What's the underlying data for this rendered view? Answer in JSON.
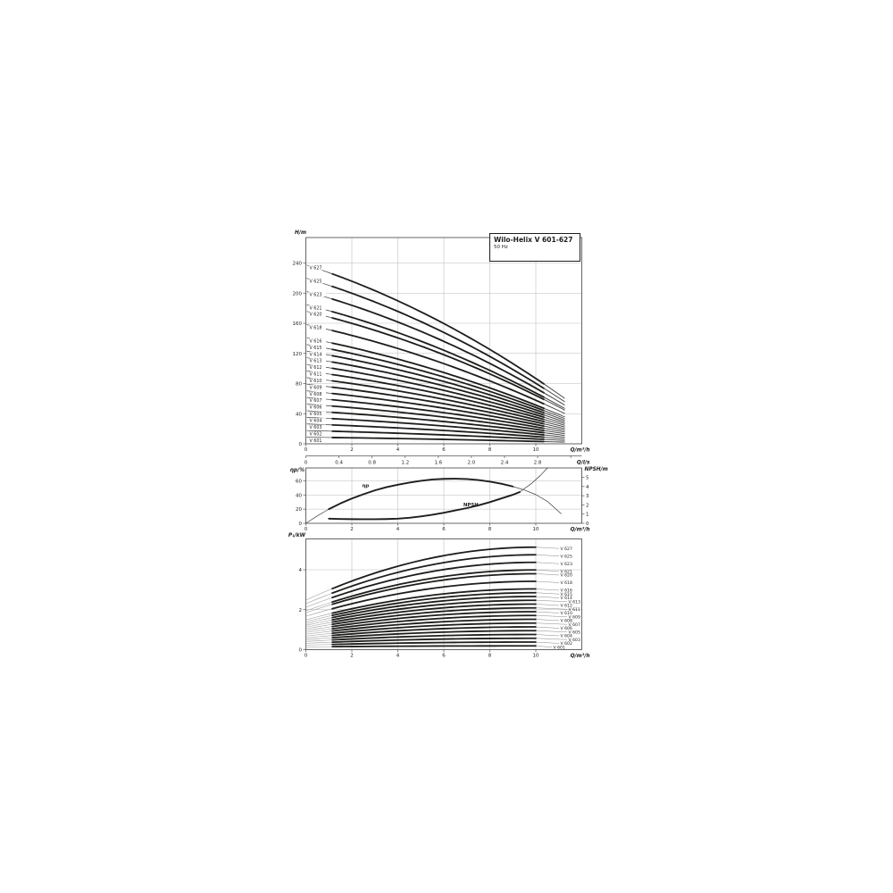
{
  "title_block": {
    "title": "Wilo-Helix V 601-627",
    "subtitle": "50 Hz"
  },
  "colors": {
    "background": "#ffffff",
    "curve": "#1d1d1b",
    "thin_curve": "#3a3a3a",
    "power_thin": "#999999",
    "leader": "#888888",
    "grid": "#bbbbbb",
    "frame": "#555555",
    "text": "#1d1d1b"
  },
  "chart_data": [
    {
      "type": "line",
      "title": "Wilo-Helix V 601-627",
      "subtitle": "50 Hz",
      "ylabel": "H/m",
      "xlabel": "Q/m³/h",
      "xlabel_secondary": "Q/l/s",
      "xlim": [
        0,
        12
      ],
      "ylim": [
        0,
        274
      ],
      "xticks": [
        0,
        2,
        4,
        6,
        8,
        10
      ],
      "yticks": [
        0,
        40,
        80,
        120,
        160,
        200,
        240
      ],
      "xticks_secondary": [
        0,
        0.4,
        0.8,
        1.2,
        1.6,
        2.0,
        2.4,
        2.8
      ],
      "grid": true,
      "legend_position": "curve-labels-left",
      "curve_model": {
        "coeffs": [
          0.0415,
          0.0022
        ],
        "q_end": 11.25,
        "thick_range": [
          1.15,
          10.35
        ]
      },
      "series": [
        {
          "name": "V 627",
          "shutoff_head_m": 237.6,
          "head_at_10m3h": 87
        },
        {
          "name": "V 625",
          "shutoff_head_m": 220.0,
          "head_at_10m3h": 80
        },
        {
          "name": "V 623",
          "shutoff_head_m": 202.4,
          "head_at_10m3h": 74
        },
        {
          "name": "V 621",
          "shutoff_head_m": 184.8,
          "head_at_10m3h": 67
        },
        {
          "name": "V 620",
          "shutoff_head_m": 176.0,
          "head_at_10m3h": 64
        },
        {
          "name": "V 618",
          "shutoff_head_m": 158.4,
          "head_at_10m3h": 58
        },
        {
          "name": "V 616",
          "shutoff_head_m": 140.8,
          "head_at_10m3h": 51
        },
        {
          "name": "V 615",
          "shutoff_head_m": 132.0,
          "head_at_10m3h": 48
        },
        {
          "name": "V 614",
          "shutoff_head_m": 123.2,
          "head_at_10m3h": 45
        },
        {
          "name": "V 613",
          "shutoff_head_m": 114.4,
          "head_at_10m3h": 42
        },
        {
          "name": "V 612",
          "shutoff_head_m": 105.6,
          "head_at_10m3h": 39
        },
        {
          "name": "V 611",
          "shutoff_head_m": 96.8,
          "head_at_10m3h": 35
        },
        {
          "name": "V 610",
          "shutoff_head_m": 88.0,
          "head_at_10m3h": 32
        },
        {
          "name": "V 609",
          "shutoff_head_m": 79.2,
          "head_at_10m3h": 29
        },
        {
          "name": "V 608",
          "shutoff_head_m": 70.4,
          "head_at_10m3h": 26
        },
        {
          "name": "V 607",
          "shutoff_head_m": 61.6,
          "head_at_10m3h": 22
        },
        {
          "name": "V 606",
          "shutoff_head_m": 52.8,
          "head_at_10m3h": 19
        },
        {
          "name": "V 605",
          "shutoff_head_m": 44.0,
          "head_at_10m3h": 16
        },
        {
          "name": "V 604",
          "shutoff_head_m": 35.2,
          "head_at_10m3h": 13
        },
        {
          "name": "V 603",
          "shutoff_head_m": 26.4,
          "head_at_10m3h": 10
        },
        {
          "name": "V 602",
          "shutoff_head_m": 17.6,
          "head_at_10m3h": 6
        },
        {
          "name": "V 601",
          "shutoff_head_m": 8.8,
          "head_at_10m3h": 3
        }
      ]
    },
    {
      "type": "line",
      "ylabel_left": "ηp/%",
      "ylabel_right": "NPSH/m",
      "xlabel": "Q/m³/h",
      "xlim": [
        0,
        12
      ],
      "ylim_left": [
        0,
        78
      ],
      "ylim_right": [
        0,
        6
      ],
      "xticks": [
        0,
        2,
        4,
        6,
        8,
        10
      ],
      "yticks_left": [
        0,
        20,
        40,
        60
      ],
      "yticks_right": [
        0,
        1,
        2,
        3,
        4,
        5
      ],
      "grid": true,
      "series": [
        {
          "name": "ηp",
          "axis": "left",
          "thick_range": [
            1,
            9.4
          ],
          "label_at": [
            2.45,
            51
          ],
          "points": [
            [
              0,
              0
            ],
            [
              0.5,
              10.5
            ],
            [
              1,
              20
            ],
            [
              1.5,
              28
            ],
            [
              2,
              35
            ],
            [
              2.5,
              41
            ],
            [
              3,
              46.5
            ],
            [
              3.5,
              51
            ],
            [
              4,
              54.5
            ],
            [
              4.5,
              57.5
            ],
            [
              5,
              60
            ],
            [
              5.5,
              61.8
            ],
            [
              6,
              62.7
            ],
            [
              6.5,
              63
            ],
            [
              7,
              62.5
            ],
            [
              7.5,
              61
            ],
            [
              8,
              58.8
            ],
            [
              8.5,
              55.8
            ],
            [
              9,
              52
            ],
            [
              9.5,
              47
            ],
            [
              10,
              40.5
            ],
            [
              10.5,
              31
            ],
            [
              11.1,
              13.5
            ]
          ]
        },
        {
          "name": "NPSH",
          "axis": "right",
          "thick_range": [
            1,
            9.3
          ],
          "label_at": [
            6.85,
            1.84
          ],
          "points": [
            [
              1,
              0.5
            ],
            [
              1.5,
              0.47
            ],
            [
              2,
              0.45
            ],
            [
              2.5,
              0.44
            ],
            [
              3,
              0.44
            ],
            [
              3.5,
              0.46
            ],
            [
              4,
              0.5
            ],
            [
              4.5,
              0.6
            ],
            [
              5,
              0.75
            ],
            [
              5.5,
              0.93
            ],
            [
              6,
              1.15
            ],
            [
              6.5,
              1.4
            ],
            [
              7,
              1.65
            ],
            [
              7.5,
              1.95
            ],
            [
              8,
              2.3
            ],
            [
              8.5,
              2.7
            ],
            [
              9,
              3.1
            ],
            [
              9.3,
              3.4
            ],
            [
              9.8,
              4.3
            ],
            [
              10.2,
              5.2
            ],
            [
              10.5,
              6.0
            ]
          ]
        }
      ]
    },
    {
      "type": "line",
      "ylabel": "P₁/kW",
      "xlabel": "Q/m³/h",
      "xlim": [
        0,
        12
      ],
      "ylim": [
        0,
        5.6
      ],
      "xticks": [
        0,
        2,
        4,
        6,
        8,
        10
      ],
      "yticks": [
        0,
        2,
        4
      ],
      "grid": true,
      "legend_position": "curve-labels-right",
      "power_model": {
        "thick_range": [
          1.15,
          10
        ],
        "q_end": 10
      },
      "series": [
        {
          "name": "V 627",
          "p1_at_0": 2.48,
          "p1_at_10": 5.13,
          "label_dx": 0
        },
        {
          "name": "V 625",
          "p1_at_0": 2.3,
          "p1_at_10": 4.75,
          "label_dx": 0
        },
        {
          "name": "V 623",
          "p1_at_0": 2.12,
          "p1_at_10": 4.37,
          "label_dx": 0
        },
        {
          "name": "V 621",
          "p1_at_0": 1.94,
          "p1_at_10": 3.99,
          "label_dx": 0
        },
        {
          "name": "V 620",
          "p1_at_0": 1.85,
          "p1_at_10": 3.8,
          "label_dx": 0
        },
        {
          "name": "V 618",
          "p1_at_0": 1.67,
          "p1_at_10": 3.42,
          "label_dx": 0
        },
        {
          "name": "V 616",
          "p1_at_0": 1.49,
          "p1_at_10": 3.04,
          "label_dx": 0
        },
        {
          "name": "V 615",
          "p1_at_0": 1.4,
          "p1_at_10": 2.85,
          "label_dx": 0
        },
        {
          "name": "V 614",
          "p1_at_0": 1.31,
          "p1_at_10": 2.66,
          "label_dx": 0
        },
        {
          "name": "V 613",
          "p1_at_0": 1.22,
          "p1_at_10": 2.47,
          "label_dx": 9
        },
        {
          "name": "V 612",
          "p1_at_0": 1.13,
          "p1_at_10": 2.28,
          "label_dx": 0
        },
        {
          "name": "V 611",
          "p1_at_0": 1.04,
          "p1_at_10": 2.09,
          "label_dx": 9
        },
        {
          "name": "V 610",
          "p1_at_0": 0.95,
          "p1_at_10": 1.9,
          "label_dx": 0
        },
        {
          "name": "V 609",
          "p1_at_0": 0.86,
          "p1_at_10": 1.71,
          "label_dx": 9
        },
        {
          "name": "V 608",
          "p1_at_0": 0.77,
          "p1_at_10": 1.52,
          "label_dx": 0
        },
        {
          "name": "V 607",
          "p1_at_0": 0.68,
          "p1_at_10": 1.33,
          "label_dx": 9
        },
        {
          "name": "V 606",
          "p1_at_0": 0.59,
          "p1_at_10": 1.14,
          "label_dx": 0
        },
        {
          "name": "V 605",
          "p1_at_0": 0.5,
          "p1_at_10": 0.95,
          "label_dx": 9
        },
        {
          "name": "V 604",
          "p1_at_0": 0.41,
          "p1_at_10": 0.76,
          "label_dx": 0
        },
        {
          "name": "V 603",
          "p1_at_0": 0.32,
          "p1_at_10": 0.57,
          "label_dx": 9
        },
        {
          "name": "V 602",
          "p1_at_0": 0.23,
          "p1_at_10": 0.38,
          "label_dx": 0
        },
        {
          "name": "V 601",
          "p1_at_0": 0.14,
          "p1_at_10": 0.19,
          "label_dx": -8
        }
      ]
    }
  ]
}
